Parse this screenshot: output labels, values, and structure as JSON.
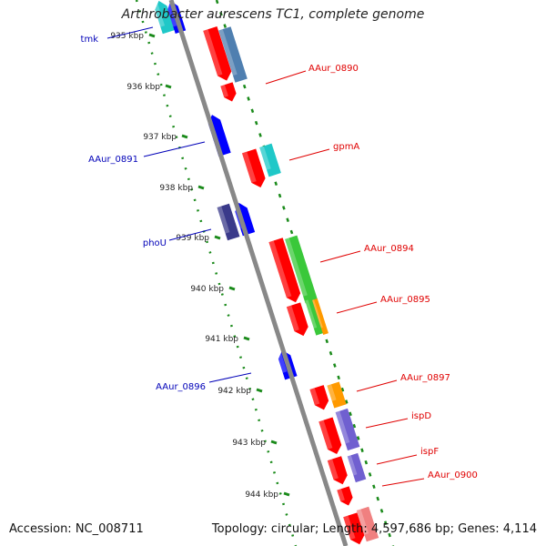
{
  "title": "Arthrobacter aurescens TC1, complete genome",
  "footer": {
    "accession": "Accession: NC_008711",
    "topology": "Topology: circular; Length: 4,597,686 bp; Genes: 4,114"
  },
  "scale_labels": [
    "935 kbp",
    "936 kbp",
    "937 kbp",
    "938 kbp",
    "939 kbp",
    "940 kbp",
    "941 kbp",
    "942 kbp",
    "943 kbp",
    "944 kbp"
  ],
  "gene_labels_left": [
    "tmk",
    "AAur_0891",
    "phoU",
    "AAur_0896"
  ],
  "gene_labels_right": [
    "AAur_0890",
    "gpmA",
    "AAur_0894",
    "AAur_0895",
    "AAur_0897",
    "ispD",
    "ispF",
    "AAur_0900"
  ],
  "colors": {
    "label_left": "#0000b8",
    "label_right": "#e00000",
    "backbone": "#888888",
    "scale_ticks": "#1a8a1a",
    "gene_red": "#ff0000",
    "gene_blue": "#0000ff",
    "gene_navy": "#3a3a8a",
    "gene_steel": "#4f7fb0",
    "gene_cyan": "#1fc8c8",
    "gene_green": "#3ac83a",
    "gene_orange": "#ff9a00",
    "gene_purple": "#7060d0",
    "gene_pink": "#f08080"
  }
}
